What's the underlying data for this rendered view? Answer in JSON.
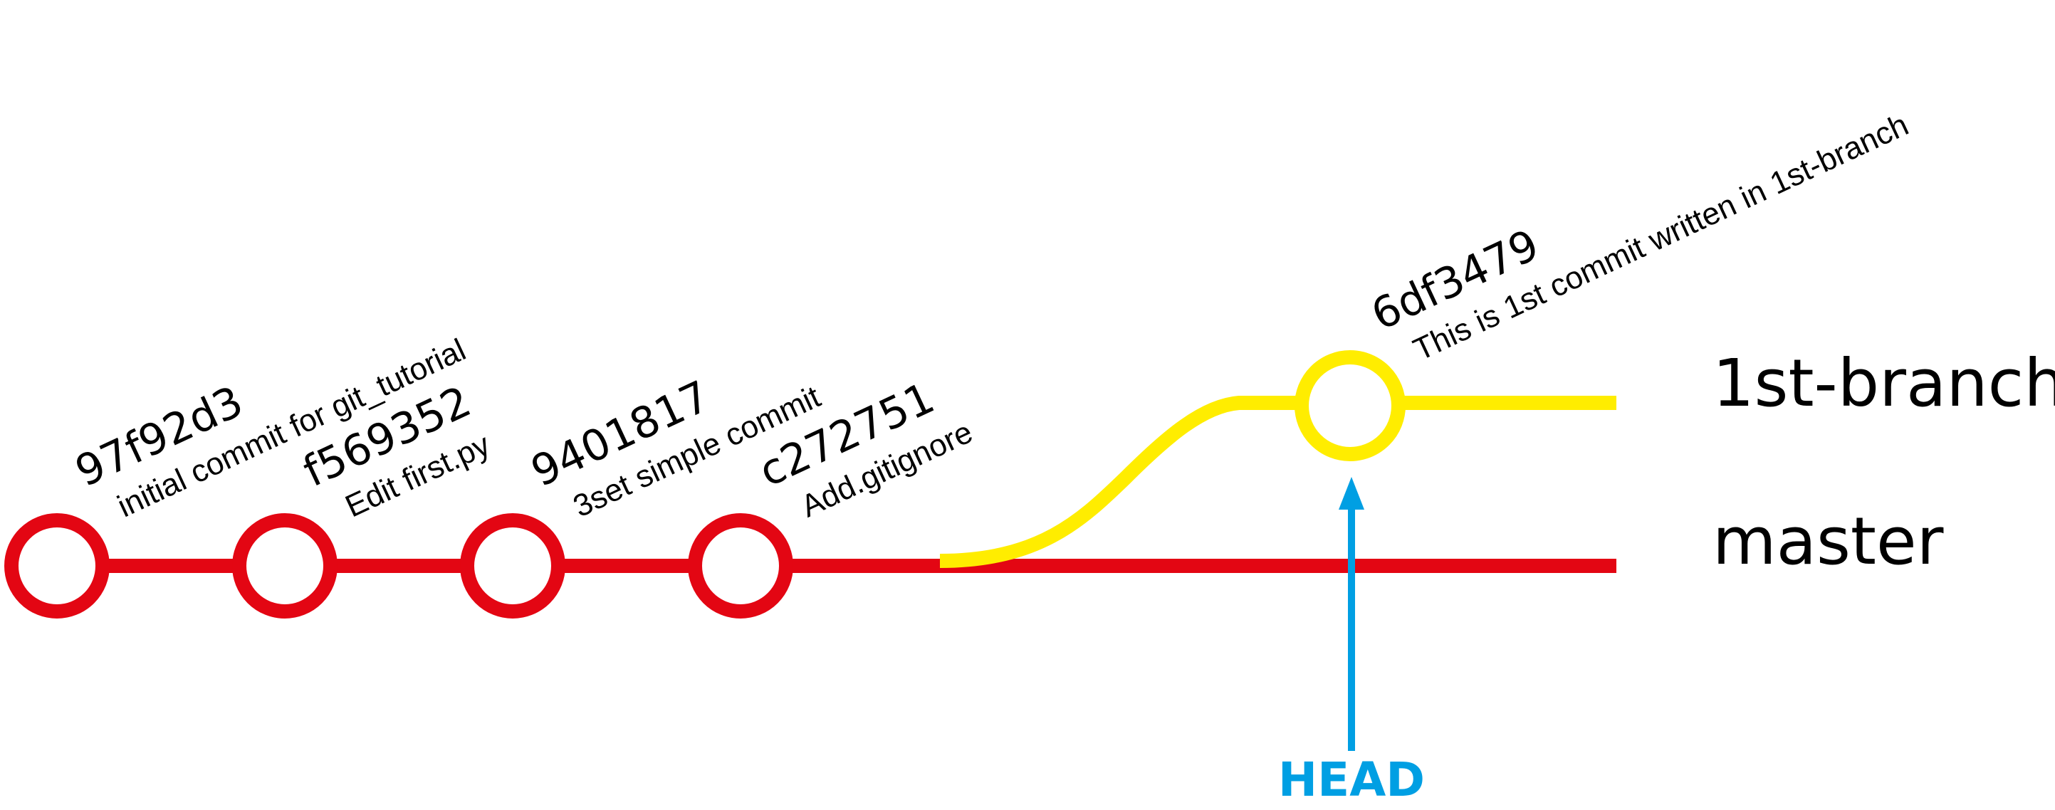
{
  "colors": {
    "master": "#e30613",
    "branch": "#ffed00",
    "head": "#009fe3",
    "text": "#000000",
    "background": "#ffffff"
  },
  "branches": {
    "master": "master",
    "first_branch": "1st-branch"
  },
  "commits": [
    {
      "hash": "97f92d3",
      "message": "initial commit for git_tutorial",
      "branch": "master"
    },
    {
      "hash": "f569352",
      "message": "Edit first.py",
      "branch": "master"
    },
    {
      "hash": "9401817",
      "message": "3set simple commit",
      "branch": "master"
    },
    {
      "hash": "c272751",
      "message": "Add.gitignore",
      "branch": "master"
    },
    {
      "hash": "6df3479",
      "message": "This is 1st commit written in 1st-branch",
      "branch": "1st-branch"
    }
  ],
  "head": {
    "label": "HEAD",
    "points_to": "6df3479"
  }
}
